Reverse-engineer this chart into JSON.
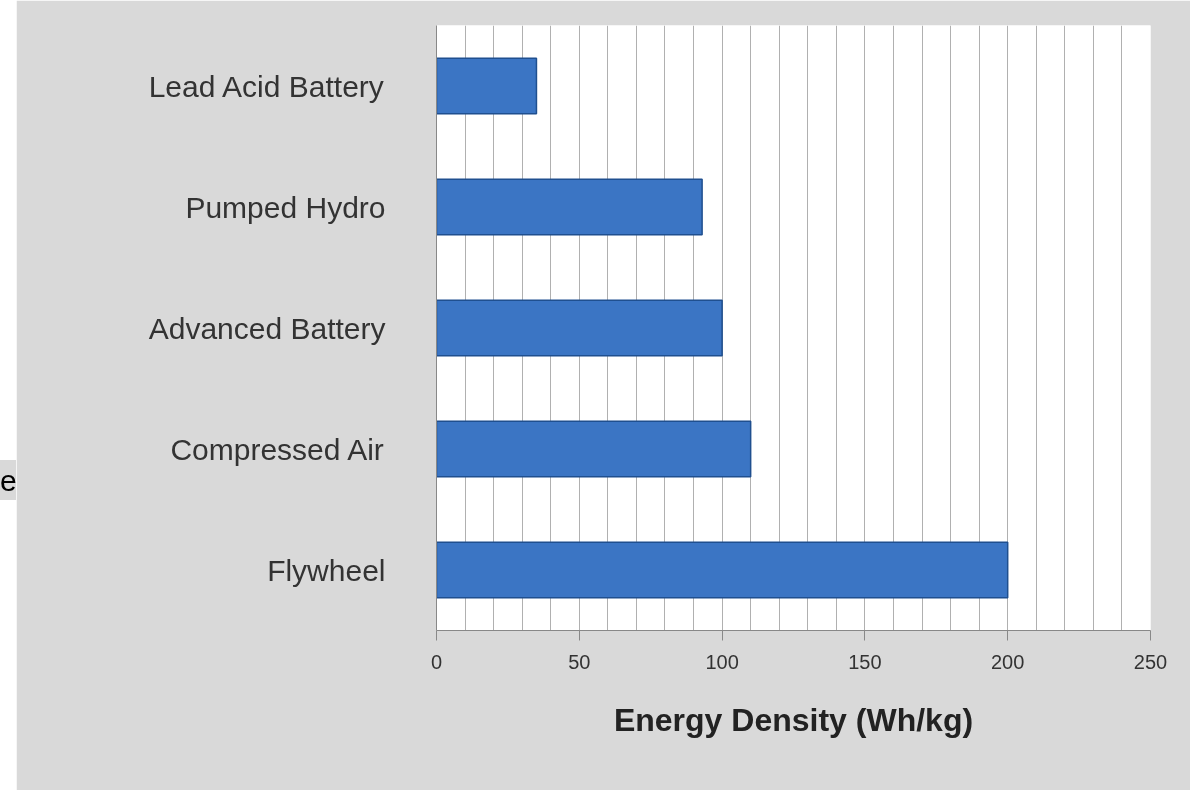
{
  "chart_data": {
    "type": "bar",
    "orientation": "horizontal",
    "xlabel": "Energy Density (Wh/kg)",
    "categories": [
      "Lead Acid Battery",
      "Pumped Hydro",
      "Advanced Battery",
      "Compressed Air",
      "Flywheel"
    ],
    "values": [
      35,
      93,
      100,
      110,
      200
    ],
    "color": "#3b75c4",
    "xlim": [
      0,
      250
    ],
    "xticks": [
      0,
      {
        "value": 10,
        "label": null
      },
      {
        "value": 20,
        "label": null
      },
      {
        "value": 30,
        "label": null
      },
      {
        "value": 40,
        "label": null
      },
      50,
      {
        "value": 60,
        "label": null
      },
      {
        "value": 70,
        "label": null
      },
      {
        "value": 80,
        "label": null
      },
      {
        "value": 90,
        "label": null
      },
      100,
      {
        "value": 110,
        "label": null
      },
      {
        "value": 120,
        "label": null
      },
      {
        "value": 130,
        "label": null
      },
      {
        "value": 140,
        "label": null
      },
      150,
      {
        "value": 160,
        "label": null
      },
      {
        "value": 170,
        "label": null
      },
      {
        "value": 180,
        "label": null
      },
      {
        "value": 190,
        "label": null
      },
      200,
      {
        "value": 210,
        "label": null
      },
      {
        "value": 220,
        "label": null
      },
      {
        "value": 230,
        "label": null
      },
      {
        "value": 240,
        "label": null
      },
      250
    ],
    "grid": "x",
    "annotations": [
      "e"
    ]
  }
}
